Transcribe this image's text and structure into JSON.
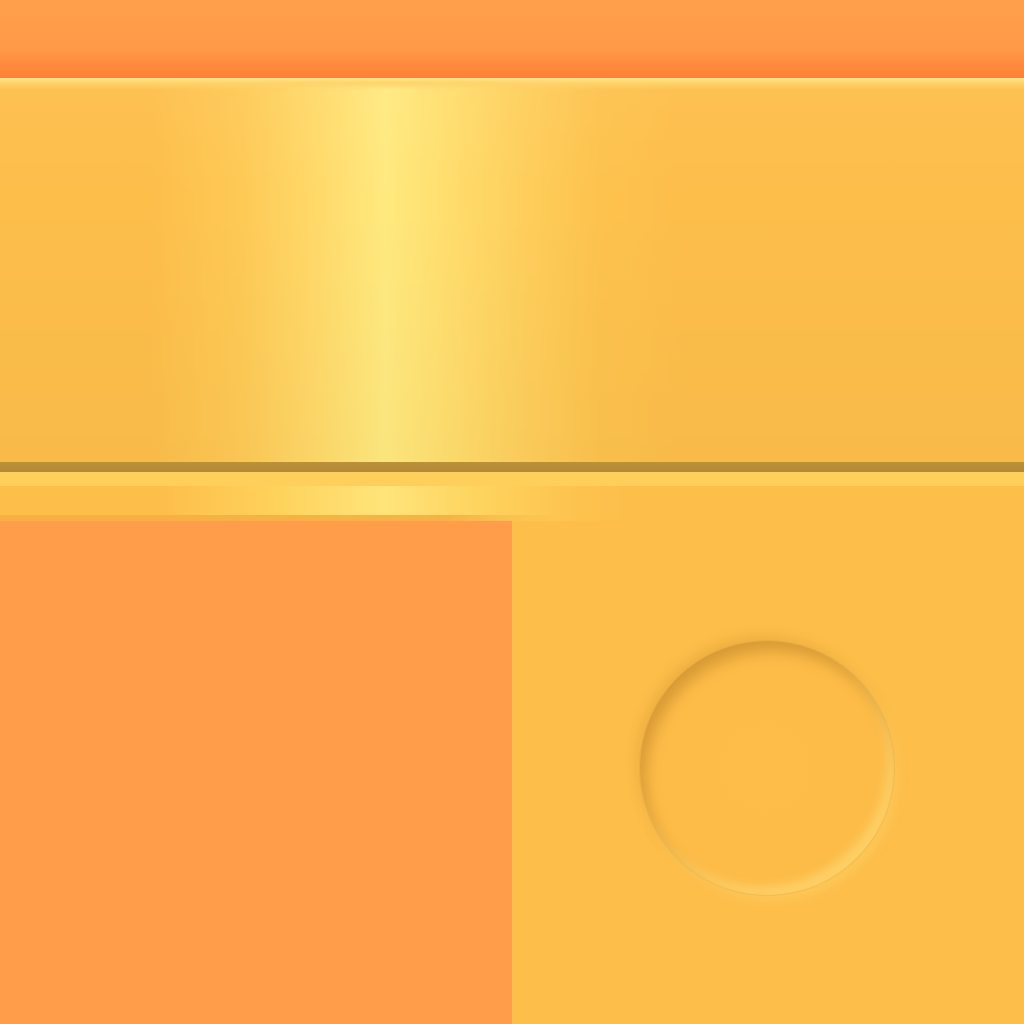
{
  "texture": {
    "colors": {
      "orange": "#FF9D4A",
      "orange_top": "#FF9F4C",
      "orange_shadow": "#FF7D35",
      "yellow": "#FDBE4A",
      "highlight": "#FFE97F",
      "divider": "#B58A37"
    },
    "parts": [
      "top-bar",
      "main-panel",
      "divider",
      "thin-strip",
      "orange-block",
      "yellow-block",
      "button-socket"
    ]
  }
}
